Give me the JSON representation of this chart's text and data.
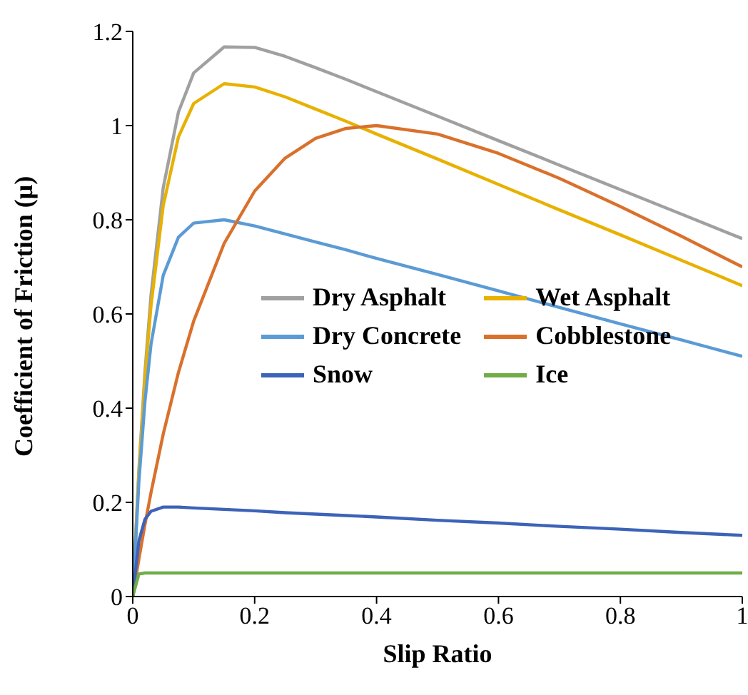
{
  "chart_data": {
    "type": "line",
    "xlabel": "Slip Ratio",
    "ylabel": "Coefficient of Friction (μ)",
    "x": [
      0,
      0.01,
      0.02,
      0.03,
      0.05,
      0.075,
      0.1,
      0.15,
      0.2,
      0.25,
      0.3,
      0.35,
      0.4,
      0.5,
      0.6,
      0.7,
      0.8,
      0.9,
      1
    ],
    "series": [
      {
        "name": "Dry Asphalt",
        "color": "#a0a0a0",
        "values": [
          0,
          0.268,
          0.477,
          0.641,
          0.868,
          1.029,
          1.112,
          1.167,
          1.166,
          1.147,
          1.123,
          1.098,
          1.072,
          1.02,
          0.968,
          0.916,
          0.864,
          0.812,
          0.76
        ]
      },
      {
        "name": "Wet Asphalt",
        "color": "#e8b100",
        "values": [
          0,
          0.261,
          0.463,
          0.618,
          0.83,
          0.976,
          1.047,
          1.089,
          1.082,
          1.061,
          1.035,
          1.009,
          0.982,
          0.929,
          0.875,
          0.821,
          0.768,
          0.714,
          0.66
        ]
      },
      {
        "name": "Dry Concrete",
        "color": "#5b9bd5",
        "values": [
          0,
          0.242,
          0.414,
          0.536,
          0.682,
          0.763,
          0.793,
          0.8,
          0.787,
          0.77,
          0.753,
          0.736,
          0.718,
          0.684,
          0.649,
          0.614,
          0.579,
          0.545,
          0.51
        ]
      },
      {
        "name": "Cobblestone",
        "color": "#d9712c",
        "values": [
          0,
          0.079,
          0.153,
          0.221,
          0.345,
          0.476,
          0.585,
          0.75,
          0.861,
          0.931,
          0.973,
          0.994,
          1.0,
          0.982,
          0.941,
          0.888,
          0.828,
          0.765,
          0.7
        ]
      },
      {
        "name": "Snow",
        "color": "#3c63b8",
        "values": [
          0,
          0.118,
          0.164,
          0.181,
          0.19,
          0.19,
          0.188,
          0.185,
          0.182,
          0.178,
          0.175,
          0.172,
          0.169,
          0.162,
          0.156,
          0.149,
          0.143,
          0.136,
          0.13
        ]
      },
      {
        "name": "Ice",
        "color": "#70ad47",
        "values": [
          0,
          0.048,
          0.05,
          0.05,
          0.05,
          0.05,
          0.05,
          0.05,
          0.05,
          0.05,
          0.05,
          0.05,
          0.05,
          0.05,
          0.05,
          0.05,
          0.05,
          0.05,
          0.05
        ]
      }
    ],
    "xlim": [
      0,
      1
    ],
    "xticks": [
      0,
      0.2,
      0.4,
      0.6,
      0.8,
      1
    ],
    "ylim": [
      0,
      1.2
    ],
    "yticks": [
      0,
      0.2,
      0.4,
      0.6,
      0.8,
      1,
      1.2
    ],
    "legend": "center",
    "marker": "none",
    "line_style": "solid"
  }
}
